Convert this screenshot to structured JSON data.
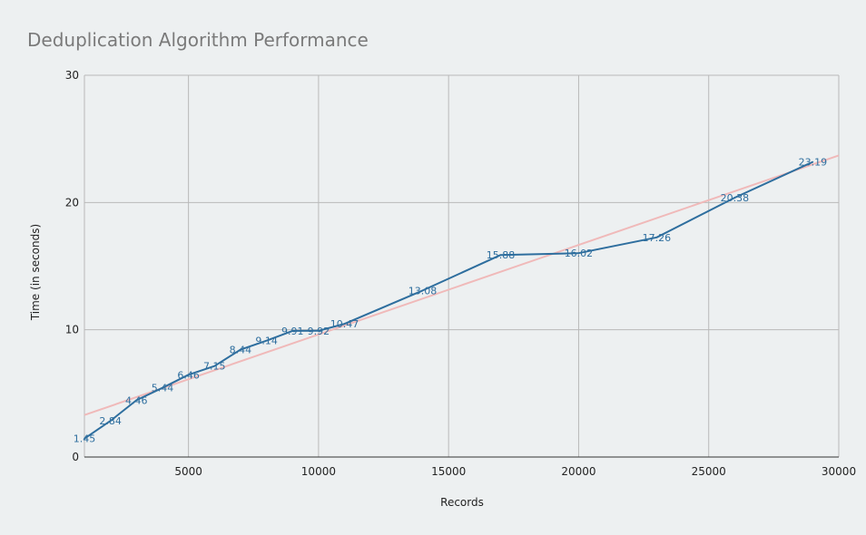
{
  "chart_data": {
    "type": "line",
    "title": "Deduplication Algorithm Performance",
    "xlabel": "Records",
    "ylabel": "Time (in seconds)",
    "xlim": [
      1000,
      30000
    ],
    "ylim": [
      0,
      30
    ],
    "x_ticks": [
      5000,
      10000,
      15000,
      20000,
      25000,
      30000
    ],
    "y_ticks": [
      0,
      10,
      20,
      30
    ],
    "grid": true,
    "series": [
      {
        "x": [
          1000,
          2000,
          3000,
          4000,
          5000,
          6000,
          7000,
          8000,
          9000,
          10000,
          11000,
          14000,
          17000,
          20000,
          23000,
          26000,
          29000
        ],
        "values": [
          1.45,
          2.84,
          4.46,
          5.44,
          6.46,
          7.15,
          8.44,
          9.14,
          9.91,
          9.92,
          10.47,
          13.08,
          15.88,
          16.02,
          17.26,
          20.38,
          23.19
        ],
        "labels": [
          "1.45",
          "2.84",
          "4.46",
          "5.44",
          "6.46",
          "7.15",
          "8.44",
          "9.14",
          "9.91",
          "9.92",
          "10.47",
          "13.08",
          "15.88",
          "16.02",
          "17.26",
          "20.38",
          "23.19"
        ],
        "color": "#2e6e9e"
      }
    ],
    "trendline": {
      "type": "linear",
      "y_at_xmin": 3.3,
      "y_at_xmax": 23.7,
      "color": "#f0b9b9"
    }
  }
}
